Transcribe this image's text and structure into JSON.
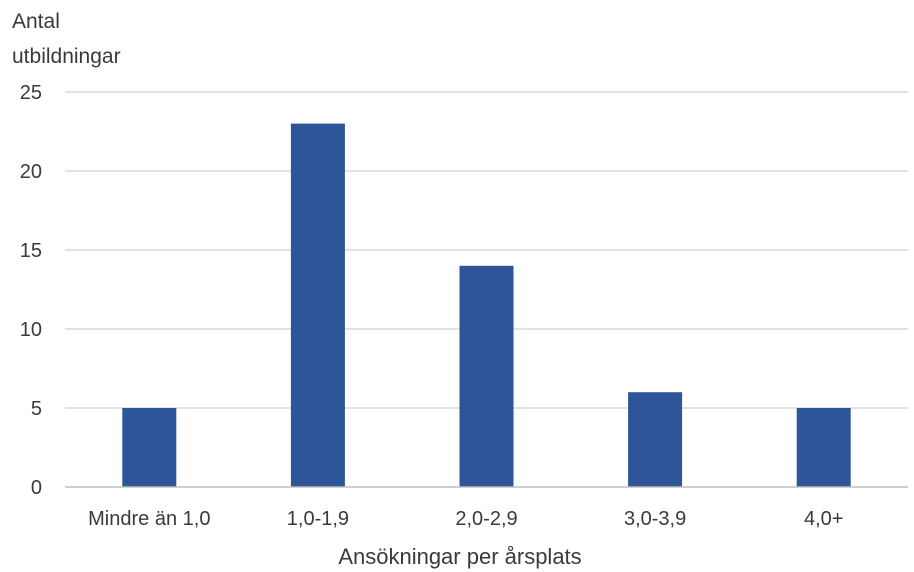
{
  "chart_data": {
    "type": "bar",
    "title": "",
    "ylabel_lines": [
      "Antal",
      "utbildningar"
    ],
    "xlabel": "Ansökningar per årsplats",
    "categories": [
      "Mindre än 1,0",
      "1,0-1,9",
      "2,0-2,9",
      "3,0-3,9",
      "4,0+"
    ],
    "values": [
      5,
      23,
      14,
      6,
      5
    ],
    "ylim": [
      0,
      25
    ],
    "yticks": [
      0,
      5,
      10,
      15,
      20,
      25
    ],
    "grid": true,
    "legend": "none",
    "bar_color": "#2e5597"
  }
}
